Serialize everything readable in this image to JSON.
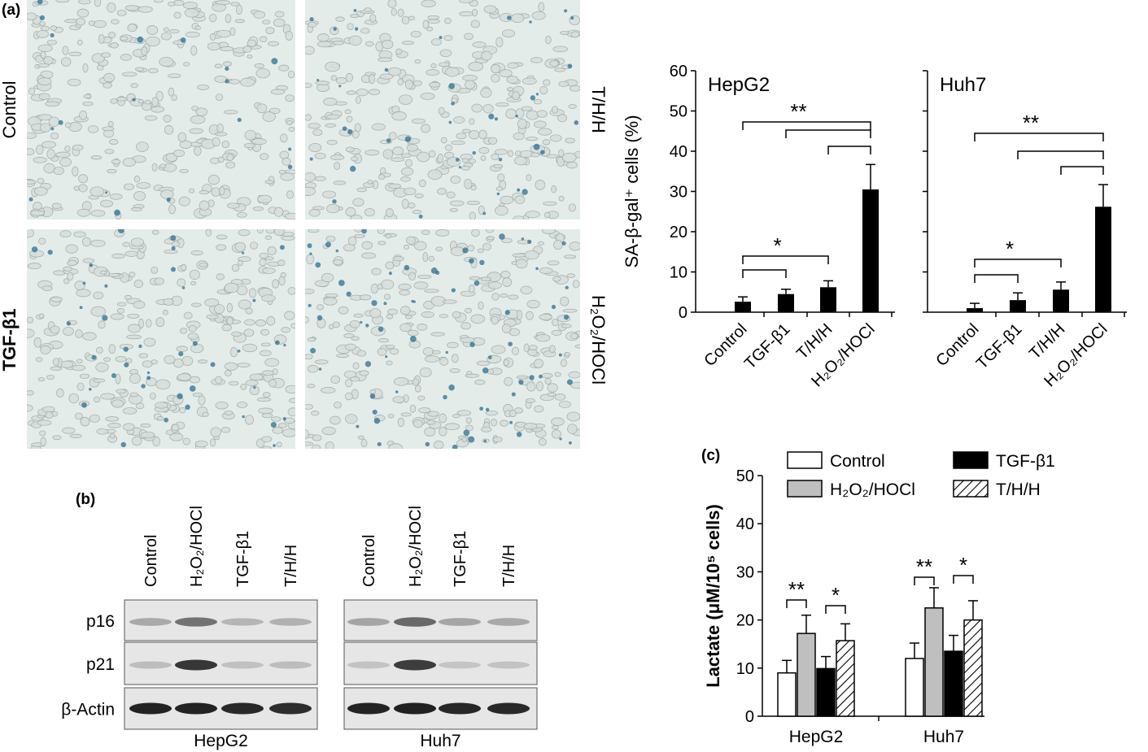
{
  "panels": {
    "a": "(a)",
    "b": "(b)",
    "c": "(c)"
  },
  "micrographs": {
    "labels": [
      "Control",
      "TGF-β1",
      "T/H/H",
      "H₂O₂/HOCl"
    ]
  },
  "colors": {
    "micro_bg": "#e4ecea",
    "cell_fill": "#d7dfdc",
    "cell_edge": "#9fa9a5",
    "blue_stain": "#2f6f8f",
    "bar_black": "#000000",
    "bar_gray": "#bfbfbf"
  },
  "chart_data": [
    {
      "type": "bar",
      "panel": "a",
      "title": "HepG2",
      "ylabel": "SA-β-gal⁺ cells (%)",
      "categories": [
        "Control",
        "TGF-β1",
        "T/H/H",
        "H₂O₂/HOCl"
      ],
      "values": [
        2.6,
        4.5,
        6.2,
        30.5
      ],
      "errors": [
        1.2,
        1.2,
        1.6,
        6.2
      ],
      "ylim": [
        0,
        60
      ],
      "yticks": [
        0,
        10,
        20,
        30,
        40,
        50,
        60
      ],
      "significance": [
        {
          "from": 0,
          "to": 3,
          "label": "**"
        },
        {
          "from": 1,
          "to": 3,
          "label": ""
        },
        {
          "from": 2,
          "to": 3,
          "label": ""
        },
        {
          "from": 0,
          "to": 2,
          "label": "*"
        },
        {
          "from": 0,
          "to": 1,
          "label": ""
        }
      ]
    },
    {
      "type": "bar",
      "panel": "a",
      "title": "Huh7",
      "categories": [
        "Control",
        "TGF-β1",
        "T/H/H",
        "H₂O₂/HOCl"
      ],
      "values": [
        1.0,
        3.0,
        5.6,
        26.2
      ],
      "errors": [
        1.2,
        1.8,
        1.9,
        5.5
      ],
      "ylim": [
        0,
        60
      ],
      "significance": [
        {
          "from": 0,
          "to": 3,
          "label": "**"
        },
        {
          "from": 1,
          "to": 3,
          "label": ""
        },
        {
          "from": 2,
          "to": 3,
          "label": ""
        },
        {
          "from": 0,
          "to": 2,
          "label": "*"
        },
        {
          "from": 0,
          "to": 1,
          "label": ""
        }
      ]
    },
    {
      "type": "bar",
      "panel": "c",
      "ylabel": "Lactate (μM/10⁵ cells)",
      "categories": [
        "HepG2",
        "Huh7"
      ],
      "ylim": [
        0,
        50
      ],
      "yticks": [
        0,
        10,
        20,
        30,
        40,
        50
      ],
      "legend_position": "top",
      "series": [
        {
          "name": "Control",
          "values": [
            9.0,
            12.0
          ],
          "errors": [
            2.6,
            3.2
          ],
          "style": "white"
        },
        {
          "name": "H₂O₂/HOCl",
          "values": [
            17.2,
            22.5
          ],
          "errors": [
            3.8,
            4.2
          ],
          "style": "gray"
        },
        {
          "name": "TGF-β1",
          "values": [
            9.9,
            13.5
          ],
          "errors": [
            2.5,
            3.3
          ],
          "style": "black"
        },
        {
          "name": "T/H/H",
          "values": [
            15.7,
            20.0
          ],
          "errors": [
            3.5,
            4.0
          ],
          "style": "hatched"
        }
      ],
      "significance": [
        {
          "group": 0,
          "from": 0,
          "to": 1,
          "label": "**"
        },
        {
          "group": 0,
          "from": 2,
          "to": 3,
          "label": "*"
        },
        {
          "group": 1,
          "from": 0,
          "to": 1,
          "label": "**"
        },
        {
          "group": 1,
          "from": 2,
          "to": 3,
          "label": "*"
        }
      ]
    }
  ],
  "blot": {
    "lanes": [
      "Control",
      "H₂O₂/HOCl",
      "TGF-β1",
      "T/H/H"
    ],
    "rows": [
      "p16",
      "p21",
      "β-Actin"
    ],
    "cell_lines": [
      "HepG2",
      "Huh7"
    ],
    "intensities": {
      "HepG2": [
        [
          0.28,
          0.55,
          0.22,
          0.24
        ],
        [
          0.18,
          0.85,
          0.16,
          0.18
        ],
        [
          0.95,
          0.95,
          0.92,
          0.9
        ]
      ],
      "Huh7": [
        [
          0.3,
          0.6,
          0.3,
          0.28
        ],
        [
          0.15,
          0.82,
          0.14,
          0.15
        ],
        [
          0.95,
          0.96,
          0.93,
          0.92
        ]
      ]
    }
  }
}
